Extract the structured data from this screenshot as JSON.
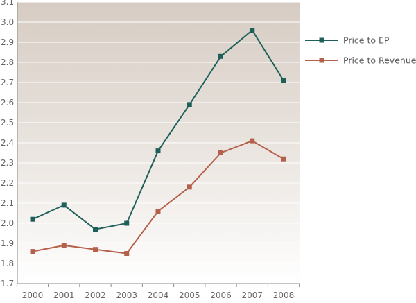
{
  "chart_data": {
    "type": "line",
    "title": "",
    "xlabel": "",
    "ylabel": "",
    "categories": [
      "2000",
      "2001",
      "2002",
      "2003",
      "2004",
      "2005",
      "2006",
      "2007",
      "2008"
    ],
    "ylim": [
      1.7,
      3.1
    ],
    "y_ticks": [
      "1.7",
      "1.8",
      "1.9",
      "2.0",
      "2.1",
      "2.2",
      "2.3",
      "2.4",
      "2.5",
      "2.6",
      "2.7",
      "2.8",
      "2.9",
      "3.0",
      "3.1"
    ],
    "grid": true,
    "legend_position": "right",
    "background": "vertical gradient, light beige-grey at top fading to white at bottom",
    "series": [
      {
        "name": "Price to EP",
        "color": "#1e5f5a",
        "marker": "square",
        "values": [
          2.02,
          2.09,
          1.97,
          2.0,
          2.36,
          2.59,
          2.83,
          2.96,
          2.71
        ]
      },
      {
        "name": "Price to Revenue",
        "color": "#b5604a",
        "marker": "square",
        "values": [
          1.86,
          1.89,
          1.87,
          1.85,
          2.06,
          2.18,
          2.35,
          2.41,
          2.32
        ]
      }
    ]
  }
}
